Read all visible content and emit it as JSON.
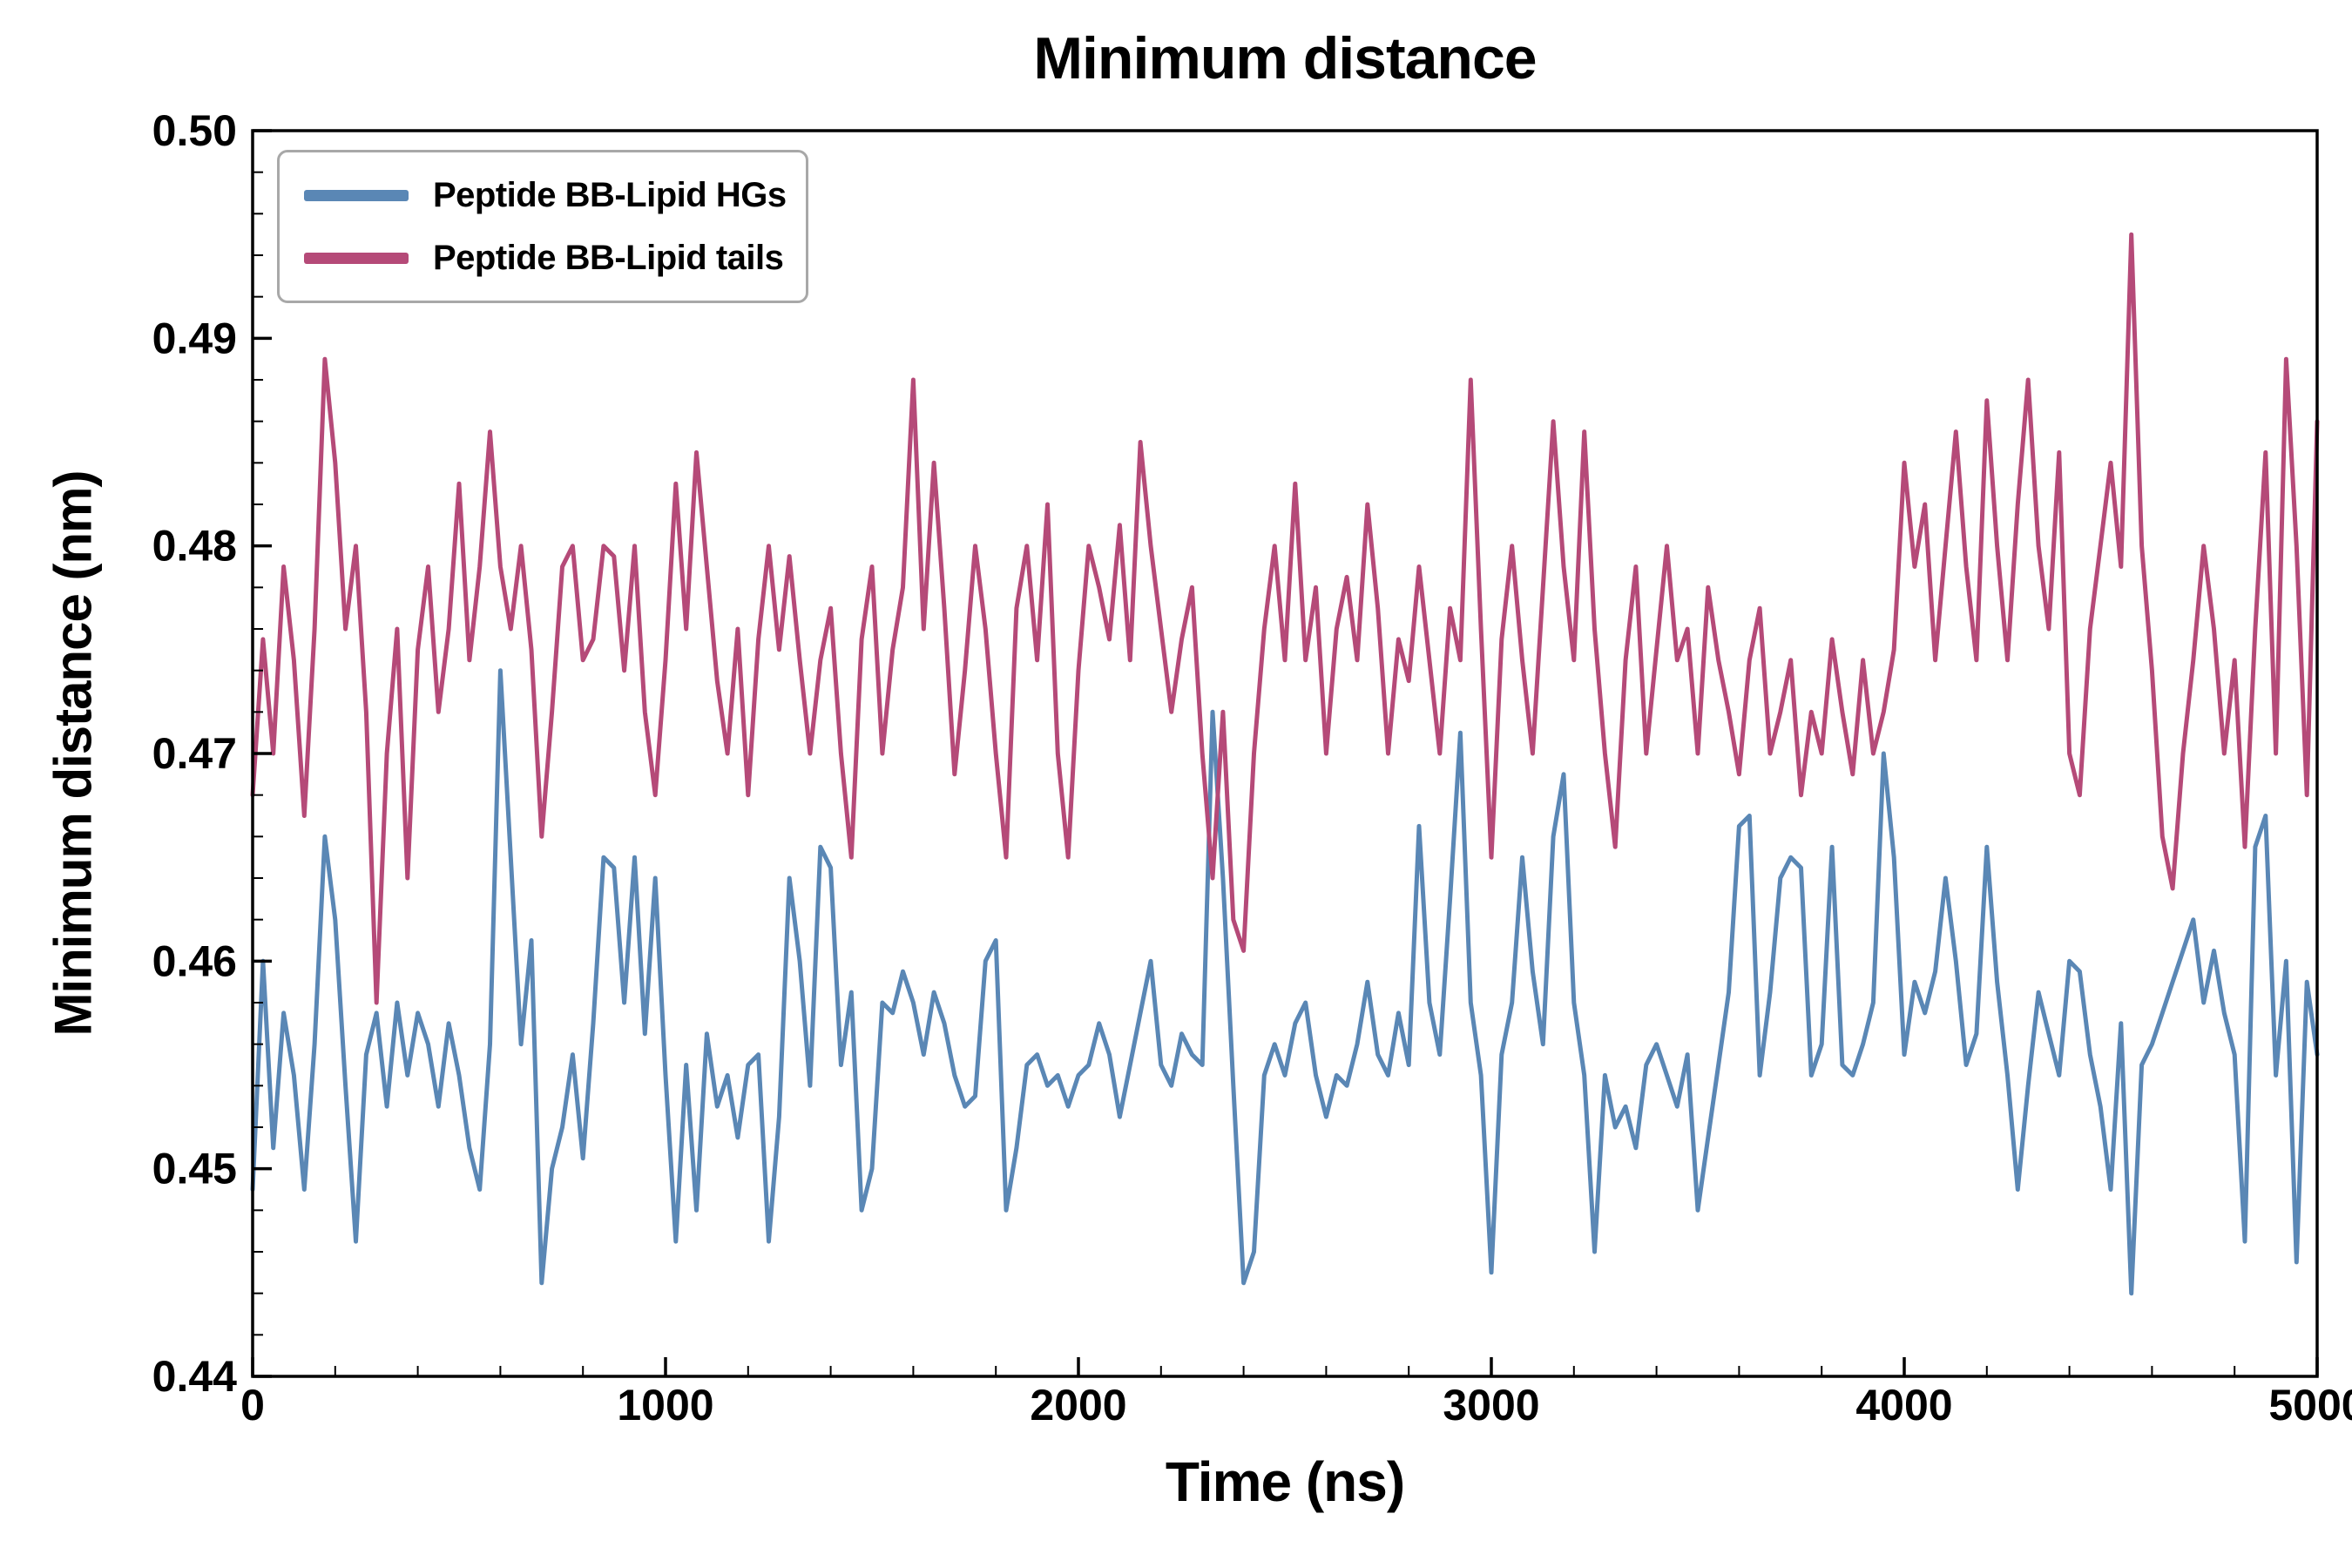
{
  "figure": {
    "background": "#ffffff",
    "spine_color": "#000000"
  },
  "chart_data": {
    "type": "line",
    "title": "Minimum distance",
    "xlabel": "Time (ns)",
    "ylabel": "Minimum distance (nm)",
    "xlim": [
      0,
      5000
    ],
    "ylim": [
      0.44,
      0.5
    ],
    "xticks": [
      0,
      1000,
      2000,
      3000,
      4000,
      5000
    ],
    "yticks": [
      0.44,
      0.45,
      0.46,
      0.47,
      0.48,
      0.49,
      0.5
    ],
    "grid": false,
    "legend_position": "upper left",
    "x_step": 25,
    "series": [
      {
        "name": "Peptide BB-Lipid HGs",
        "color": "#5a87b5",
        "values": [
          0.449,
          0.46,
          0.451,
          0.4575,
          0.4545,
          0.449,
          0.456,
          0.466,
          0.462,
          0.454,
          0.4465,
          0.4555,
          0.4575,
          0.453,
          0.458,
          0.4545,
          0.4575,
          0.456,
          0.453,
          0.457,
          0.4545,
          0.451,
          0.449,
          0.456,
          0.474,
          0.465,
          0.456,
          0.461,
          0.4445,
          0.45,
          0.452,
          0.4555,
          0.4505,
          0.457,
          0.465,
          0.4645,
          0.458,
          0.465,
          0.4565,
          0.464,
          0.4545,
          0.4465,
          0.455,
          0.448,
          0.4565,
          0.453,
          0.4545,
          0.4515,
          0.455,
          0.4555,
          0.4465,
          0.4525,
          0.464,
          0.46,
          0.454,
          0.4655,
          0.4645,
          0.455,
          0.4585,
          0.448,
          0.45,
          0.458,
          0.4575,
          0.4595,
          0.458,
          0.4555,
          0.4585,
          0.457,
          0.4545,
          0.453,
          0.4535,
          0.46,
          0.461,
          0.448,
          0.451,
          0.455,
          0.4555,
          0.454,
          0.4545,
          0.453,
          0.4545,
          0.455,
          0.457,
          0.4555,
          0.4525,
          0.455,
          0.4575,
          0.46,
          0.455,
          0.454,
          0.4565,
          0.4555,
          0.455,
          0.472,
          0.464,
          0.454,
          0.4445,
          0.446,
          0.4545,
          0.456,
          0.4545,
          0.457,
          0.458,
          0.4545,
          0.4525,
          0.4545,
          0.454,
          0.456,
          0.459,
          0.4555,
          0.4545,
          0.4575,
          0.455,
          0.4665,
          0.458,
          0.4555,
          0.463,
          0.471,
          0.458,
          0.4545,
          0.445,
          0.4555,
          0.458,
          0.465,
          0.4595,
          0.456,
          0.466,
          0.469,
          0.458,
          0.4545,
          0.446,
          0.4545,
          0.452,
          0.453,
          0.451,
          0.455,
          0.456,
          0.4545,
          0.453,
          0.4555,
          0.448,
          0.4515,
          0.455,
          0.4585,
          0.4665,
          0.467,
          0.4545,
          0.4585,
          0.464,
          0.465,
          0.4645,
          0.4545,
          0.456,
          0.4655,
          0.455,
          0.4545,
          0.456,
          0.458,
          0.47,
          0.465,
          0.4555,
          0.459,
          0.4575,
          0.4595,
          0.464,
          0.46,
          0.455,
          0.4565,
          0.4655,
          0.459,
          0.4545,
          0.449,
          0.454,
          0.4585,
          0.4565,
          0.4545,
          0.46,
          0.4595,
          0.4555,
          0.453,
          0.449,
          0.457,
          0.444,
          0.455,
          0.456,
          0.4575,
          0.459,
          0.4605,
          0.462,
          0.458,
          0.4605,
          0.4575,
          0.4555,
          0.4465,
          0.4655,
          0.467,
          0.4545,
          0.46,
          0.4455,
          0.459,
          0.4555
        ]
      },
      {
        "name": "Peptide BB-Lipid tails",
        "color": "#b54a78",
        "values": [
          0.468,
          0.4755,
          0.47,
          0.479,
          0.4745,
          0.467,
          0.476,
          0.489,
          0.484,
          0.476,
          0.48,
          0.472,
          0.458,
          0.47,
          0.476,
          0.464,
          0.475,
          0.479,
          0.472,
          0.476,
          0.483,
          0.4745,
          0.479,
          0.4855,
          0.479,
          0.476,
          0.48,
          0.475,
          0.466,
          0.472,
          0.479,
          0.48,
          0.4745,
          0.4755,
          0.48,
          0.4795,
          0.474,
          0.48,
          0.472,
          0.468,
          0.4745,
          0.483,
          0.476,
          0.4845,
          0.479,
          0.4735,
          0.47,
          0.476,
          0.468,
          0.4755,
          0.48,
          0.475,
          0.4795,
          0.4745,
          0.47,
          0.4745,
          0.477,
          0.47,
          0.465,
          0.4755,
          0.479,
          0.47,
          0.475,
          0.478,
          0.488,
          0.476,
          0.484,
          0.477,
          0.469,
          0.474,
          0.48,
          0.476,
          0.47,
          0.465,
          0.477,
          0.48,
          0.4745,
          0.482,
          0.47,
          0.465,
          0.474,
          0.48,
          0.478,
          0.4755,
          0.481,
          0.4745,
          0.485,
          0.48,
          0.476,
          0.472,
          0.4755,
          0.478,
          0.47,
          0.464,
          0.472,
          0.462,
          0.4605,
          0.47,
          0.476,
          0.48,
          0.4745,
          0.483,
          0.4745,
          0.478,
          0.47,
          0.476,
          0.4785,
          0.4745,
          0.482,
          0.477,
          0.47,
          0.4755,
          0.4735,
          0.479,
          0.4745,
          0.47,
          0.477,
          0.4745,
          0.488,
          0.476,
          0.465,
          0.4755,
          0.48,
          0.4745,
          0.47,
          0.478,
          0.486,
          0.479,
          0.4745,
          0.4855,
          0.476,
          0.47,
          0.4655,
          0.4745,
          0.479,
          0.47,
          0.475,
          0.48,
          0.4745,
          0.476,
          0.47,
          0.478,
          0.4745,
          0.472,
          0.469,
          0.4745,
          0.477,
          0.47,
          0.472,
          0.4745,
          0.468,
          0.472,
          0.47,
          0.4755,
          0.472,
          0.469,
          0.4745,
          0.47,
          0.472,
          0.475,
          0.484,
          0.479,
          0.482,
          0.4745,
          0.48,
          0.4855,
          0.479,
          0.4745,
          0.487,
          0.48,
          0.4745,
          0.482,
          0.488,
          0.48,
          0.476,
          0.4845,
          0.47,
          0.468,
          0.476,
          0.48,
          0.484,
          0.479,
          0.495,
          0.48,
          0.474,
          0.466,
          0.4635,
          0.47,
          0.4745,
          0.48,
          0.476,
          0.47,
          0.4745,
          0.4655,
          0.476,
          0.4845,
          0.47,
          0.489,
          0.48,
          0.468,
          0.486
        ]
      }
    ]
  }
}
